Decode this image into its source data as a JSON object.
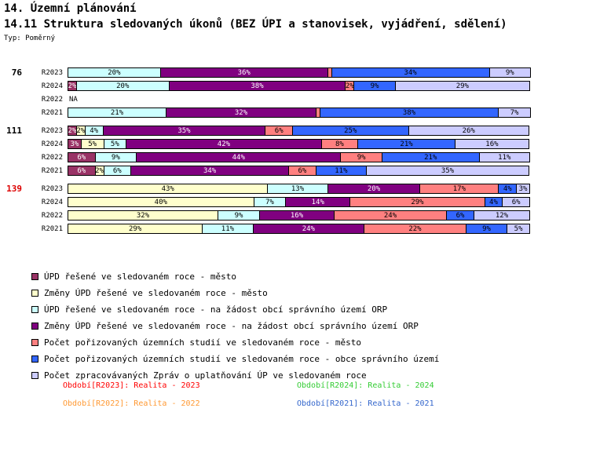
{
  "header": {
    "title1": "14. Územní plánování",
    "title2": "14.11 Struktura sledovaných úkonů (BEZ ÚPI a stanovisek, vyjádření, sdělení)",
    "type_label": "Typ: Poměrný"
  },
  "na_label": "NA",
  "chart_data": {
    "type": "bar",
    "stacked": true,
    "orientation": "horizontal",
    "unit": "%",
    "value_label_min": 2,
    "series": [
      {
        "name": "ÚPD řešené ve sledovaném roce - město",
        "color": "#993366",
        "label_color": "#FFFFFF"
      },
      {
        "name": "Změny ÚPD řešené ve sledovaném roce - město",
        "color": "#FFFFCC",
        "label_color": "#000000"
      },
      {
        "name": "ÚPD řešené ve sledovaném roce - na žádost obcí správního území ORP",
        "color": "#CCFFFF",
        "label_color": "#000000"
      },
      {
        "name": "Změny ÚPD řešené ve sledovaném roce - na žádost obcí správního území ORP",
        "color": "#800080",
        "label_color": "#FFFFFF"
      },
      {
        "name": "Počet pořizovaných územních studií ve sledovaném roce - město",
        "color": "#FF8080",
        "label_color": "#000000"
      },
      {
        "name": "Počet pořizovaných územních studií ve sledovaném roce - obce správního území",
        "color": "#3366FF",
        "label_color": "#000000"
      },
      {
        "name": "Počet zpracovávaných Zpráv o uplatňování ÚP ve sledovaném roce",
        "color": "#CCCCFF",
        "label_color": "#000000"
      }
    ],
    "groups": [
      {
        "count": "76",
        "count_color": "#000000",
        "rows": [
          {
            "year": "R2023",
            "values": [
              0,
              0,
              20,
              36,
              1,
              34,
              9
            ]
          },
          {
            "year": "R2024",
            "values": [
              2,
              0,
              20,
              38,
              2,
              9,
              29
            ]
          },
          {
            "year": "R2022",
            "na": true
          },
          {
            "year": "R2021",
            "values": [
              0,
              0,
              21,
              32,
              1,
              38,
              7
            ]
          }
        ]
      },
      {
        "count": "111",
        "count_color": "#000000",
        "rows": [
          {
            "year": "R2023",
            "values": [
              2,
              2,
              4,
              35,
              6,
              25,
              26
            ]
          },
          {
            "year": "R2024",
            "values": [
              3,
              5,
              5,
              42,
              8,
              21,
              16
            ]
          },
          {
            "year": "R2022",
            "values": [
              6,
              0,
              9,
              44,
              9,
              21,
              11
            ]
          },
          {
            "year": "R2021",
            "values": [
              6,
              2,
              6,
              34,
              6,
              11,
              35
            ]
          }
        ]
      },
      {
        "count": "139",
        "count_color": "#DD0000",
        "rows": [
          {
            "year": "R2023",
            "values": [
              0,
              43,
              13,
              20,
              17,
              4,
              3
            ]
          },
          {
            "year": "R2024",
            "values": [
              0,
              40,
              7,
              14,
              29,
              4,
              6
            ]
          },
          {
            "year": "R2022",
            "values": [
              0,
              32,
              9,
              16,
              24,
              6,
              12
            ]
          },
          {
            "year": "R2021",
            "values": [
              0,
              29,
              11,
              24,
              22,
              9,
              5
            ]
          }
        ]
      }
    ]
  },
  "periods": [
    {
      "label": "Období[R2023]: Realita - 2023",
      "color": "#FF0000"
    },
    {
      "label": "Období[R2024]: Realita - 2024",
      "color": "#33CC33"
    },
    {
      "label": "Období[R2022]: Realita - 2022",
      "color": "#FF9933"
    },
    {
      "label": "Období[R2021]: Realita - 2021",
      "color": "#3366CC"
    }
  ]
}
